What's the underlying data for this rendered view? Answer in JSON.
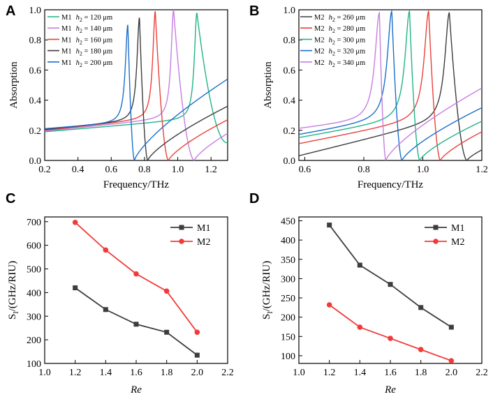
{
  "chart_data": [
    {
      "panel": "A",
      "type": "line",
      "xlabel": "Frequency/THz",
      "ylabel": "Absorption",
      "xlim": [
        0.2,
        1.3
      ],
      "ylim": [
        0,
        1.0
      ],
      "xticks": [
        "0.2",
        "0.4",
        "0.6",
        "0.8",
        "1.0",
        "1.2"
      ],
      "yticks": [
        "0.0",
        "0.2",
        "0.4",
        "0.6",
        "0.8",
        "1.0"
      ],
      "legend_position": "top-left",
      "series": [
        {
          "name": "M1  h2 = 120 μm",
          "label_prefix": "M1",
          "param": "h",
          "sub": "2",
          "value": " = 120 μm",
          "color": "#1fb486",
          "peak": 1.115,
          "peak_value": 0.98,
          "dip": 1.3,
          "dip_value": 0.12,
          "base": 0.19,
          "end_value": null
        },
        {
          "name": "M1  h2 = 140 μm",
          "label_prefix": "M1",
          "param": "h",
          "sub": "2",
          "value": " = 140 μm",
          "color": "#c77de0",
          "peak": 0.975,
          "peak_value": 1.0,
          "dip": 1.1,
          "dip_value": 0.0,
          "base": 0.195,
          "end_value": 0.18
        },
        {
          "name": "M1  h2 = 160 μm",
          "label_prefix": "M1",
          "param": "h",
          "sub": "2",
          "value": " = 160 μm",
          "color": "#e8413b",
          "peak": 0.865,
          "peak_value": 0.99,
          "dip": 0.945,
          "dip_value": 0.0,
          "base": 0.2,
          "end_value": 0.27
        },
        {
          "name": "M1  h2 = 180 μm",
          "label_prefix": "M1",
          "param": "h",
          "sub": "2",
          "value": " = 180 μm",
          "color": "#3d3d3d",
          "peak": 0.77,
          "peak_value": 0.95,
          "dip": 0.82,
          "dip_value": 0.0,
          "base": 0.205,
          "end_value": 0.36
        },
        {
          "name": "M1  h2 = 200 μm",
          "label_prefix": "M1",
          "param": "h",
          "sub": "2",
          "value": " = 200 μm",
          "color": "#1b6fc9",
          "peak": 0.7,
          "peak_value": 0.9,
          "dip": 0.74,
          "dip_value": 0.0,
          "base": 0.21,
          "end_value": 0.54
        }
      ]
    },
    {
      "panel": "B",
      "type": "line",
      "xlabel": "Frequency/THz",
      "ylabel": "Absorption",
      "xlim": [
        0.58,
        1.2
      ],
      "ylim": [
        0,
        1.0
      ],
      "xticks": [
        "0.6",
        "0.8",
        "1.0",
        "1.2"
      ],
      "yticks": [
        "0.0",
        "0.2",
        "0.4",
        "0.6",
        "0.8",
        "1.0"
      ],
      "legend_position": "top-right",
      "series": [
        {
          "name": "M2  h2 = 260 μm",
          "label_prefix": "M2",
          "param": "h",
          "sub": "2",
          "value": " = 260 μm",
          "color": "#3d3d3d",
          "peak": 1.09,
          "peak_value": 0.98,
          "dip": 1.15,
          "dip_value": 0.0,
          "start_value": 0.03,
          "end_value": 0.07
        },
        {
          "name": "M2  h2 = 280 μm",
          "label_prefix": "M2",
          "param": "h",
          "sub": "2",
          "value": " = 280 μm",
          "color": "#e8413b",
          "peak": 1.02,
          "peak_value": 0.99,
          "dip": 1.06,
          "dip_value": 0.0,
          "start_value": 0.11,
          "end_value": 0.19
        },
        {
          "name": "M2  h2 = 300 μm",
          "label_prefix": "M2",
          "param": "h",
          "sub": "2",
          "value": " = 300 μm",
          "color": "#1fb486",
          "peak": 0.955,
          "peak_value": 0.99,
          "dip": 0.99,
          "dip_value": 0.0,
          "start_value": 0.15,
          "end_value": 0.26
        },
        {
          "name": "M2  h2 = 320 μm",
          "label_prefix": "M2",
          "param": "h",
          "sub": "2",
          "value": " = 320 μm",
          "color": "#1b6fc9",
          "peak": 0.895,
          "peak_value": 0.99,
          "dip": 0.93,
          "dip_value": 0.0,
          "start_value": 0.17,
          "end_value": 0.35
        },
        {
          "name": "M2  h2 = 340 μm",
          "label_prefix": "M2",
          "param": "h",
          "sub": "2",
          "value": " = 340 μm",
          "color": "#c77de0",
          "peak": 0.853,
          "peak_value": 0.98,
          "dip": 0.875,
          "dip_value": 0.0,
          "start_value": 0.21,
          "end_value": 0.48
        }
      ]
    },
    {
      "panel": "C",
      "type": "line",
      "xlabel": "Re",
      "ylabel": "S_I/(GHz/RIU)",
      "ylabel_main": "S",
      "ylabel_sub": "I",
      "ylabel_rest": "/(GHz/RIU)",
      "xlim": [
        1.0,
        2.2
      ],
      "ylim": [
        100,
        720
      ],
      "xticks": [
        "1.0",
        "1.2",
        "1.4",
        "1.6",
        "1.8",
        "2.0",
        "2.2"
      ],
      "yticks": [
        "100",
        "200",
        "300",
        "400",
        "500",
        "600",
        "700"
      ],
      "legend_position": "top-right",
      "x": [
        1.2,
        1.4,
        1.6,
        1.8,
        2.0
      ],
      "series": [
        {
          "name": "M1",
          "marker": "square",
          "color": "#3d3d3d",
          "values": [
            420,
            328,
            266,
            232,
            135
          ]
        },
        {
          "name": "M2",
          "marker": "circle",
          "color": "#f23a3a",
          "values": [
            697,
            580,
            479,
            406,
            232
          ]
        }
      ]
    },
    {
      "panel": "D",
      "type": "line",
      "xlabel": "Re",
      "ylabel": "S_I/(GHz/RIU)",
      "ylabel_main": "S",
      "ylabel_sub": "I",
      "ylabel_rest": "/(GHz/RIU)",
      "xlim": [
        1.0,
        2.2
      ],
      "ylim": [
        80,
        460
      ],
      "xticks": [
        "1.0",
        "1.2",
        "1.4",
        "1.6",
        "1.8",
        "2.0",
        "2.2"
      ],
      "yticks": [
        "100",
        "150",
        "200",
        "250",
        "300",
        "350",
        "400",
        "450"
      ],
      "legend_position": "top-right",
      "x": [
        1.2,
        1.4,
        1.6,
        1.8,
        2.0
      ],
      "series": [
        {
          "name": "M1",
          "marker": "square",
          "color": "#3d3d3d",
          "values": [
            439,
            335,
            285,
            225,
            174
          ]
        },
        {
          "name": "M2",
          "marker": "circle",
          "color": "#f23a3a",
          "values": [
            232,
            174,
            145,
            116,
            87
          ]
        }
      ]
    }
  ]
}
